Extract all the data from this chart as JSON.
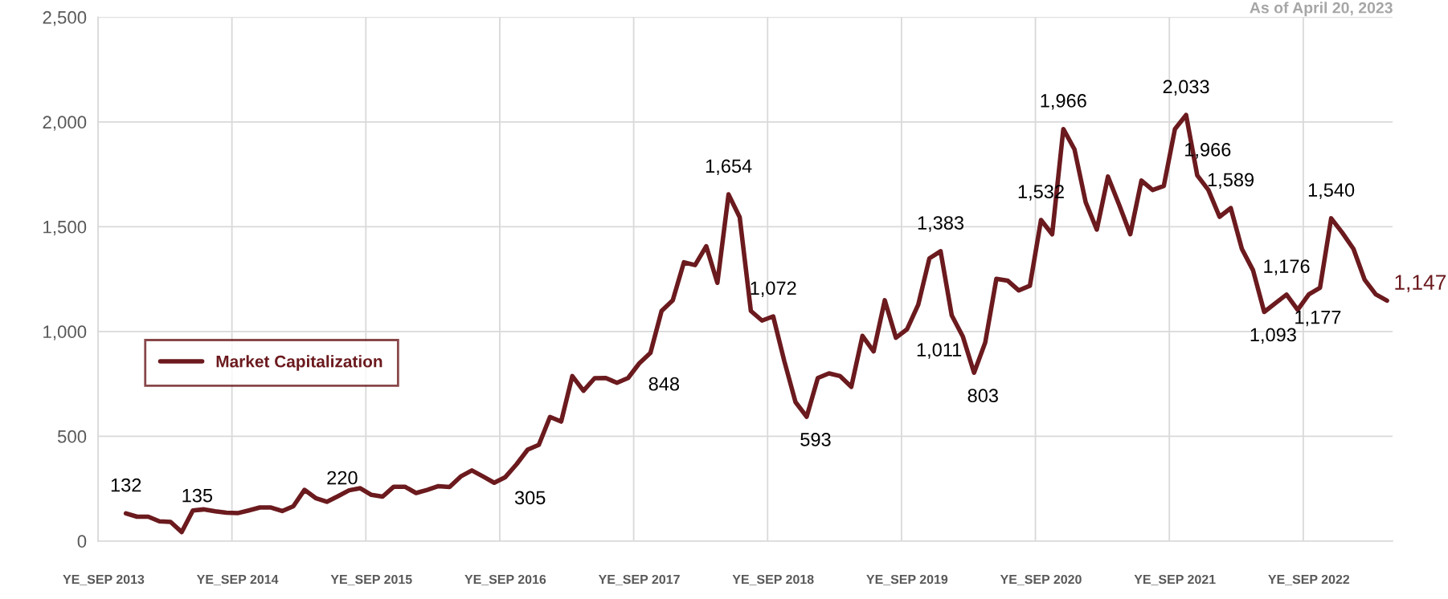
{
  "chart_data": {
    "type": "line",
    "annotations": [
      "As of April 20, 2023"
    ],
    "categories": [
      "YE_SEP 2013",
      null,
      null,
      null,
      null,
      null,
      null,
      null,
      null,
      null,
      null,
      null,
      "YE_SEP 2014",
      null,
      null,
      null,
      null,
      null,
      null,
      null,
      null,
      null,
      null,
      null,
      "YE_SEP 2015",
      null,
      null,
      null,
      null,
      null,
      null,
      null,
      null,
      null,
      null,
      null,
      "YE_SEP 2016",
      null,
      null,
      null,
      null,
      null,
      null,
      null,
      null,
      null,
      null,
      null,
      "YE_SEP 2017",
      null,
      null,
      null,
      null,
      null,
      null,
      null,
      null,
      null,
      null,
      null,
      "YE_SEP 2018",
      null,
      null,
      null,
      null,
      null,
      null,
      null,
      null,
      null,
      null,
      null,
      "YE_SEP 2019",
      null,
      null,
      null,
      null,
      null,
      null,
      null,
      null,
      null,
      null,
      null,
      "YE_SEP 2020",
      null,
      null,
      null,
      null,
      null,
      null,
      null,
      null,
      null,
      null,
      null,
      "YE_SEP 2021",
      null,
      null,
      null,
      null,
      null,
      null,
      null,
      null,
      null,
      null,
      null,
      "YE_SEP 2022",
      null,
      null,
      null,
      null,
      null,
      null,
      null
    ],
    "series": [
      {
        "name": "Market Capitalization",
        "color": "#6b1a1e",
        "values": [
          null,
          null,
          132,
          116,
          116,
          94,
          91,
          43,
          146,
          151,
          142,
          135,
          133,
          146,
          160,
          160,
          143,
          166,
          244,
          205,
          187,
          214,
          242,
          252,
          220,
          212,
          259,
          259,
          229,
          244,
          262,
          258,
          308,
          337,
          308,
          278,
          305,
          366,
          436,
          459,
          592,
          570,
          787,
          717,
          777,
          778,
          755,
          778,
          848,
          898,
          1098,
          1149,
          1330,
          1317,
          1407,
          1232,
          1654,
          1545,
          1098,
          1052,
          1072,
          858,
          663,
          593,
          778,
          800,
          787,
          736,
          979,
          905,
          1149,
          970,
          1011,
          1128,
          1349,
          1383,
          1077,
          975,
          803,
          947,
          1251,
          1243,
          1196,
          1218,
          1532,
          1464,
          1966,
          1869,
          1617,
          1486,
          1739,
          1605,
          1464,
          1720,
          1675,
          1694,
          1966,
          2033,
          1745,
          1675,
          1547,
          1589,
          1394,
          1292,
          1093,
          1135,
          1176,
          1103,
          1177,
          1209,
          1540,
          1471,
          1394,
          1247,
          1177,
          1147
        ],
        "value_labels": [
          null,
          null,
          "132",
          null,
          null,
          null,
          null,
          null,
          null,
          null,
          null,
          "135",
          null,
          null,
          null,
          null,
          null,
          null,
          null,
          null,
          null,
          null,
          null,
          null,
          "220",
          null,
          null,
          null,
          null,
          null,
          null,
          null,
          null,
          null,
          null,
          null,
          "305",
          null,
          null,
          null,
          null,
          null,
          null,
          null,
          null,
          null,
          null,
          null,
          "848",
          null,
          null,
          null,
          null,
          null,
          null,
          null,
          "1,654",
          null,
          null,
          null,
          "1,072",
          null,
          null,
          "593",
          null,
          null,
          null,
          null,
          null,
          null,
          null,
          null,
          "1,011",
          null,
          null,
          "1,383",
          null,
          null,
          "803",
          null,
          null,
          null,
          null,
          null,
          "1,532",
          null,
          "1,966",
          null,
          null,
          null,
          null,
          null,
          null,
          null,
          null,
          null,
          "1,966",
          "2,033",
          null,
          null,
          null,
          "1,589",
          null,
          null,
          "1,093",
          null,
          "1,176",
          null,
          "1,177",
          null,
          "1,540",
          null,
          null,
          null,
          null,
          "1,147"
        ]
      }
    ],
    "ylim": [
      0,
      2500
    ],
    "yticks": [
      0,
      500,
      {
        "value": 1000,
        "label": "1,000"
      },
      {
        "value": 1500,
        "label": "1,500"
      },
      {
        "value": 2000,
        "label": "2,000"
      },
      {
        "value": 2500,
        "label": "2,500"
      }
    ],
    "grid": true,
    "legend": "left",
    "line_style": "solid",
    "marker": "none"
  }
}
